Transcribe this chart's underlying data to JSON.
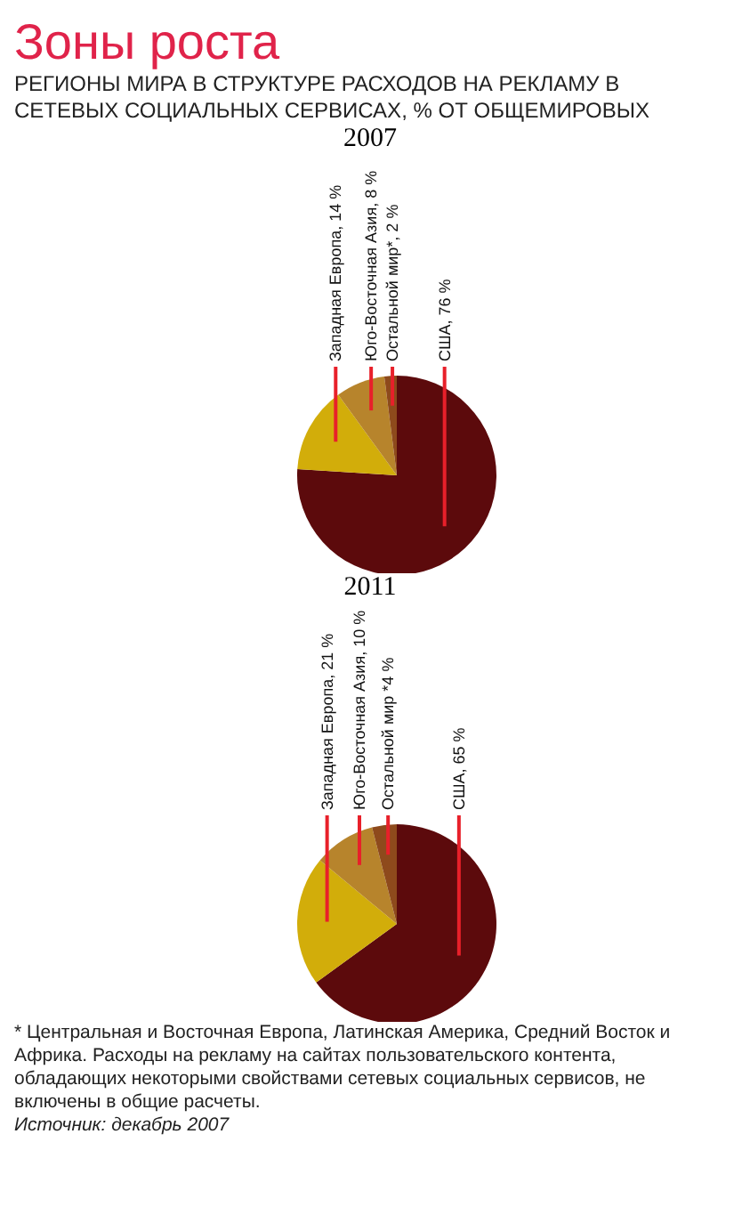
{
  "chart_data": [
    {
      "type": "other",
      "title": "Зоны роста",
      "subtitle": "РЕГИОНЫ МИРА В СТРУКТУРЕ РАСХОДОВ НА РЕКЛАМУ В СЕТЕВЫХ СОЦИАЛЬНЫХ СЕРВИСАХ, % ОТ ОБЩЕМИРОВЫХ"
    },
    {
      "type": "pie",
      "title": "2007",
      "categories": [
        "США, 76 %",
        "Западная Европа, 14 %",
        "Юго-Восточная Азия, 8 %",
        "Остальной мир*, 2 %"
      ],
      "values": [
        76,
        14,
        8,
        2
      ],
      "colors": [
        "#5c0a0c",
        "#d2ad0a",
        "#b7842c",
        "#8e4a1c"
      ]
    },
    {
      "type": "pie",
      "title": "2011",
      "categories": [
        "США, 65 %",
        "Западная Европа, 21 %",
        "Юго-Восточная Азия, 10 %",
        "Остальной мир *4 %"
      ],
      "values": [
        65,
        21,
        10,
        4
      ],
      "colors": [
        "#5c0a0c",
        "#d2ad0a",
        "#b7842c",
        "#8e4a1c"
      ],
      "annotations": [
        "* Центральная и Восточная Европа, Латинская Америка, Средний Восток и Африка. Расходы на рекламу на сайтах пользовательского контента, обладающих некоторыми свойствами сетевых социальных сервисов, не включены в общие расчеты.",
        "Источник: декабрь 2007"
      ]
    }
  ]
}
